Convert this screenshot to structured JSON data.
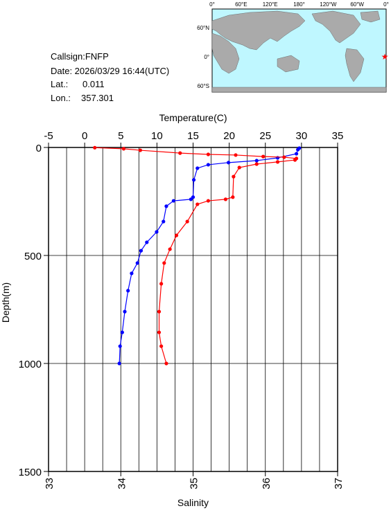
{
  "info": {
    "callsign": "Callsign:FNFP",
    "date": "Date:  2026/03/29 16:44(UTC)",
    "lat_label": "Lat.:",
    "lat": 0.011,
    "lon_label": "Lon.:",
    "lon": 357.301
  },
  "map": {
    "lon_labels": [
      "0°",
      "60°E",
      "120°E",
      "180°",
      "120°W",
      "60°W",
      "0°"
    ],
    "lat_labels": [
      "60°N",
      "0°",
      "60°S"
    ]
  },
  "chart_data": {
    "type": "line",
    "top_axis_label": "Temperature(C)",
    "bottom_axis_label": "Salinity",
    "y_axis_label": "Depth(m)",
    "xlim": [
      33,
      37
    ],
    "xticks": [
      33,
      34,
      35,
      36,
      37
    ],
    "x2lim": [
      -5,
      35
    ],
    "x2ticks": [
      -5,
      0,
      5,
      10,
      15,
      20,
      25,
      30,
      35
    ],
    "x2grid": [
      -2.5,
      0,
      2.5,
      5,
      7.5,
      10,
      12.5,
      15,
      17.5,
      20,
      22.5,
      25,
      27.5,
      30,
      32.5
    ],
    "ylim": [
      0,
      1500
    ],
    "y_inverted": true,
    "yticks": [
      0,
      500,
      1000,
      1500
    ],
    "grid": true,
    "series": [
      {
        "color": "#0000ff",
        "axis": "x2",
        "depth": [
          3,
          10,
          29,
          48,
          61,
          70,
          80,
          96,
          150,
          230,
          240,
          247,
          272,
          343,
          391,
          439,
          478,
          535,
          583,
          663,
          760,
          856,
          920,
          1000
        ],
        "values": [
          29.7,
          29.5,
          29.3,
          26.7,
          23.8,
          19.9,
          17.1,
          15.6,
          15.1,
          15.0,
          14.7,
          12.3,
          11.3,
          10.9,
          9.96,
          8.6,
          7.8,
          7.3,
          6.5,
          6.0,
          5.55,
          5.2,
          4.9,
          4.8
        ]
      },
      {
        "color": "#ff0000",
        "axis": "x",
        "depth": [
          1,
          6,
          13,
          26,
          32,
          35,
          42,
          45,
          51,
          58,
          67,
          77,
          93,
          135,
          230,
          240,
          247,
          263,
          343,
          407,
          471,
          535,
          631,
          760,
          856,
          920,
          1000
        ],
        "values": [
          33.64,
          34.04,
          34.27,
          34.82,
          35.21,
          35.59,
          35.97,
          36.26,
          36.43,
          36.41,
          36.17,
          35.88,
          35.64,
          35.56,
          35.55,
          35.45,
          35.21,
          35.06,
          34.92,
          34.77,
          34.68,
          34.6,
          34.56,
          34.53,
          34.53,
          34.56,
          34.63
        ]
      }
    ]
  }
}
